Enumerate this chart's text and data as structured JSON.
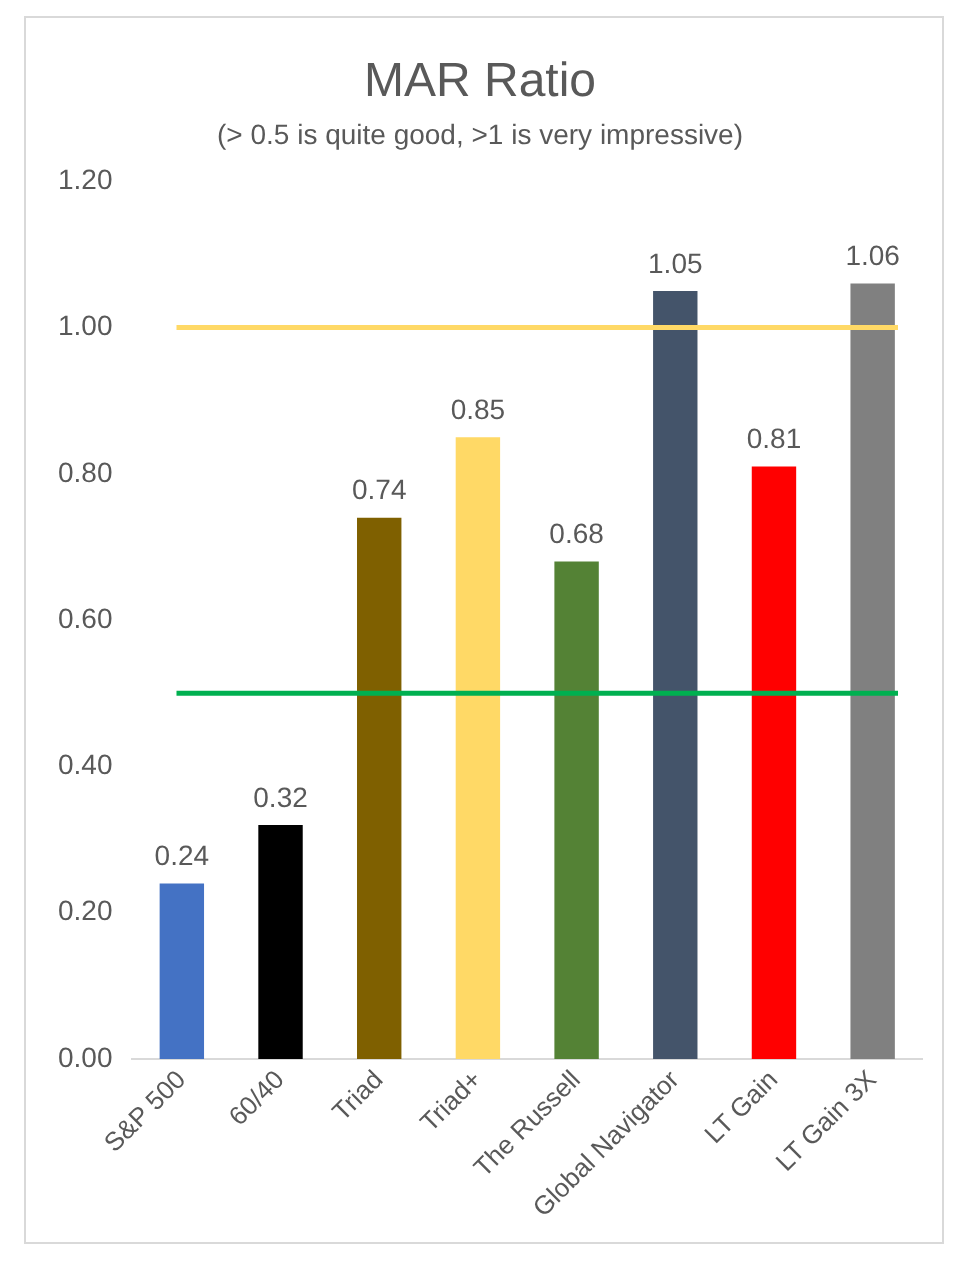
{
  "chart_data": {
    "type": "bar",
    "title": "MAR Ratio",
    "subtitle": "(> 0.5 is quite good, >1 is very impressive)",
    "categories": [
      "S&P 500",
      "60/40",
      "Triad",
      "Triad+",
      "The Russell",
      "Global Navigator",
      "LT Gain",
      "LT Gain 3X"
    ],
    "values": [
      0.24,
      0.32,
      0.74,
      0.85,
      0.68,
      1.05,
      0.81,
      1.06
    ],
    "colors": [
      "#4472c4",
      "#000000",
      "#7f6000",
      "#ffd966",
      "#548235",
      "#44546a",
      "#ff0000",
      "#808080"
    ],
    "ylim": [
      0,
      1.2
    ],
    "yticks": [
      {
        "value": 0,
        "label": "0.00"
      },
      {
        "value": 0.2,
        "label": "0.20"
      },
      {
        "value": 0.4,
        "label": "0.40"
      },
      {
        "value": 0.6,
        "label": "0.60"
      },
      {
        "value": 0.8,
        "label": "0.80"
      },
      {
        "value": 1,
        "label": "1.00"
      },
      {
        "value": 1.2,
        "label": "1.20"
      }
    ],
    "ref_lines": [
      {
        "axis": "y",
        "value": 1,
        "color": "#ffd966"
      },
      {
        "axis": "y",
        "value": 0.5,
        "color": "#00b050"
      }
    ],
    "data_labels": true,
    "grid": false,
    "legend": false
  }
}
